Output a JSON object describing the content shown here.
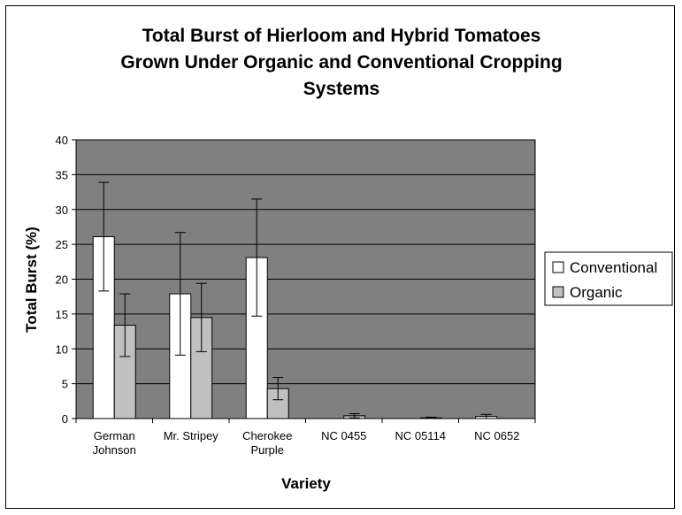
{
  "chart_data": {
    "type": "bar",
    "title_lines": [
      "Total Burst of Hierloom and Hybrid Tomatoes",
      "Grown Under Organic and Conventional Cropping",
      "Systems"
    ],
    "xlabel": "Variety",
    "ylabel": "Total Burst (%)",
    "ylim": [
      0,
      40
    ],
    "yticks": [
      0,
      5,
      10,
      15,
      20,
      25,
      30,
      35,
      40
    ],
    "grid": true,
    "legend_position": "right",
    "categories": [
      [
        "German",
        "Johnson"
      ],
      [
        "Mr. Stripey"
      ],
      [
        "Cherokee",
        "Purple"
      ],
      [
        "NC 0455"
      ],
      [
        "NC 05114"
      ],
      [
        "NC 0652"
      ]
    ],
    "series": [
      {
        "name": "Conventional",
        "color": "#ffffff",
        "values": [
          26.1,
          17.9,
          23.1,
          0.0,
          0.0,
          0.3
        ],
        "error": [
          7.8,
          8.8,
          8.4,
          0.0,
          0.0,
          0.3
        ]
      },
      {
        "name": "Organic",
        "color": "#c0c0c0",
        "values": [
          13.4,
          14.5,
          4.3,
          0.4,
          0.1,
          0.0
        ],
        "error": [
          4.5,
          4.9,
          1.6,
          0.3,
          0.1,
          0.0
        ]
      }
    ],
    "plot_background": "#808080"
  }
}
